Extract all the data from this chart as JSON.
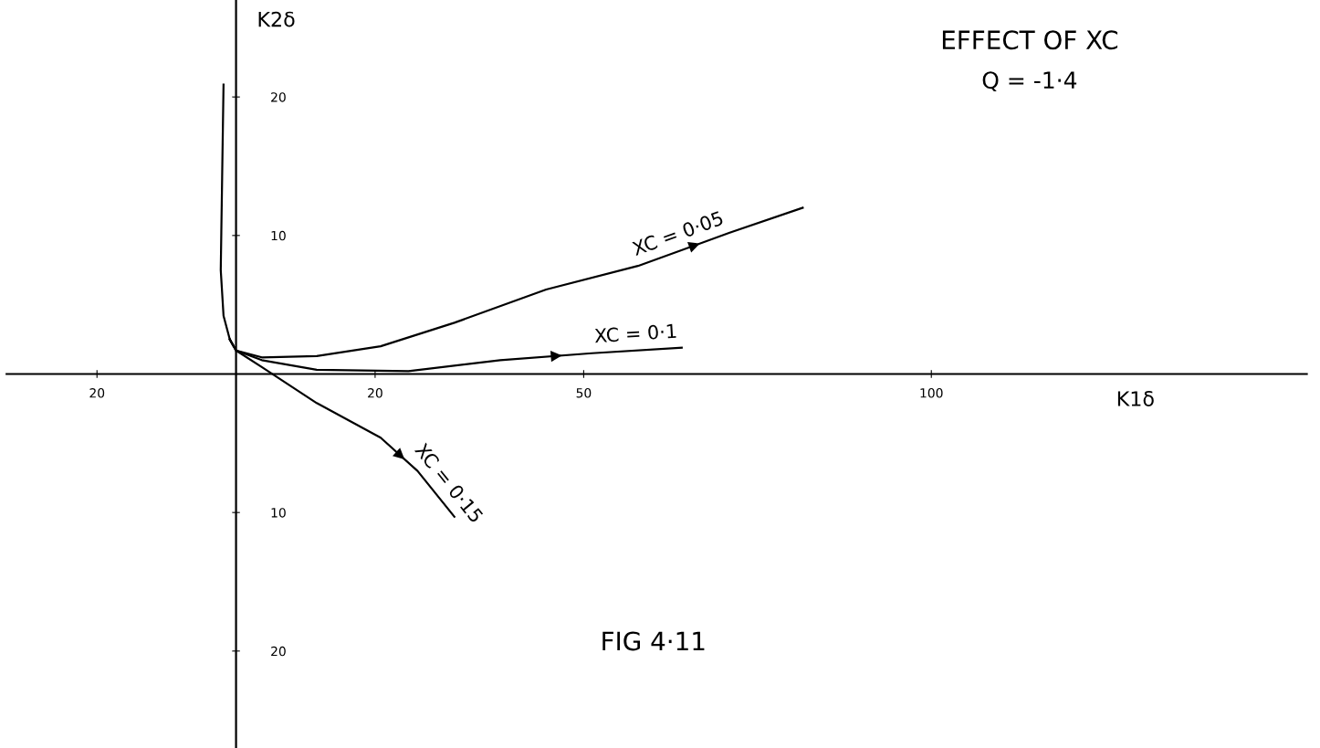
{
  "chart_data": {
    "type": "line",
    "title": "EFFECT OF XC",
    "subtitle": "Q = -1·4",
    "xlabel": "K1δ",
    "ylabel": "K2δ",
    "annotations": [
      "FIG 4·11"
    ],
    "xlim": [
      -33,
      154
    ],
    "ylim": [
      -27,
      27
    ],
    "xticks": [
      {
        "value": -20,
        "label": "20"
      },
      20,
      50,
      100
    ],
    "yticks": [
      {
        "value": -20,
        "label": "20"
      },
      {
        "value": -10,
        "label": "10"
      },
      10,
      20
    ],
    "grid": false,
    "legend": false,
    "marker": "none",
    "line_style": "solid",
    "series": [
      {
        "name": "XC = 0·05",
        "color": "#000000",
        "x": [
          -1.8,
          -2,
          -2.2,
          -1.8,
          -0.9,
          0,
          3.7,
          11.6,
          20.8,
          31.4,
          44.6,
          57.8,
          71,
          81.5
        ],
        "values": [
          20.9,
          14.2,
          7.5,
          4.2,
          2.5,
          1.7,
          1.2,
          1.3,
          2.0,
          3.7,
          6.1,
          7.8,
          10.2,
          12.0
        ]
      },
      {
        "name": "XC = 0·1",
        "color": "#000000",
        "x": [
          -0.9,
          0,
          3.7,
          11.6,
          24.8,
          38,
          51.2,
          64.1
        ],
        "values": [
          2.5,
          1.7,
          1.0,
          0.3,
          0.2,
          1.0,
          1.5,
          1.9
        ]
      },
      {
        "name": "XC = 0·15",
        "color": "#000000",
        "x": [
          -0.9,
          0,
          3.7,
          11.6,
          20.8,
          26.1,
          31.4
        ],
        "values": [
          2.5,
          1.7,
          0.5,
          -2.1,
          -4.6,
          -7.0,
          -10.3
        ]
      }
    ]
  }
}
